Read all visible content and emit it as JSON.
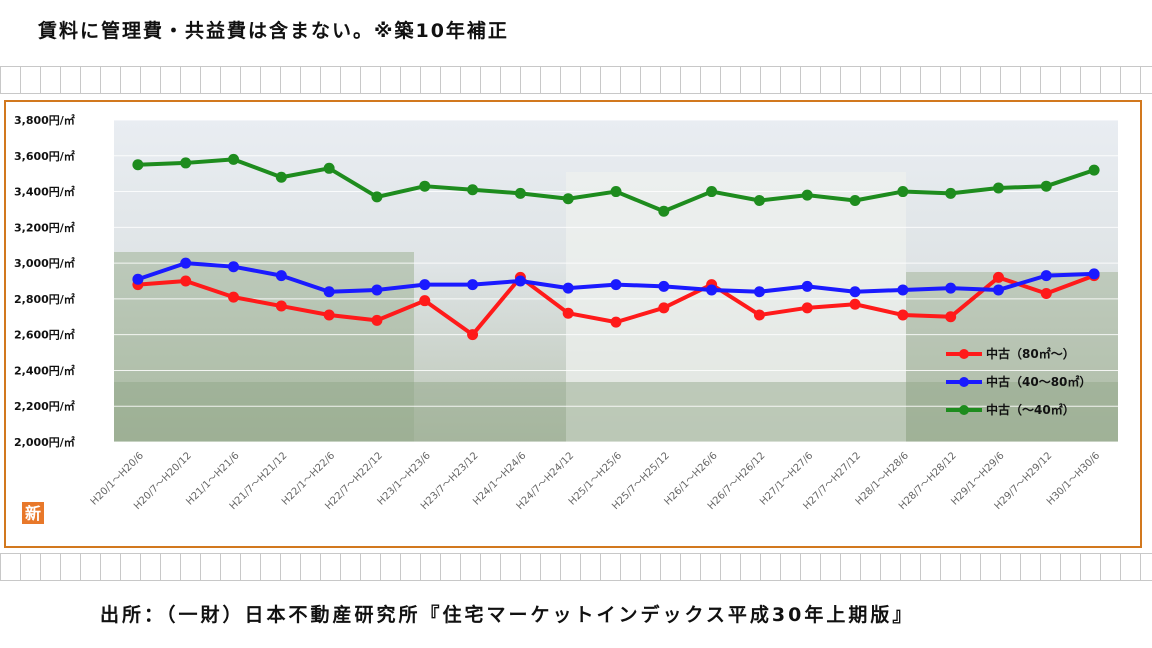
{
  "header": {
    "note": "賃料に管理費・共益費は含まない。※築10年補正"
  },
  "footer": {
    "source": "出所：（一財）日本不動産研究所『住宅マーケットインデックス平成30年上期版』"
  },
  "badge": {
    "text": "新"
  },
  "colors": {
    "frame": "#d2781e",
    "red": "#ff1a1a",
    "blue": "#1a1aff",
    "green": "#1e8c1e"
  },
  "chart_data": {
    "type": "line",
    "ylim": [
      2000,
      3800
    ],
    "yticks": [
      2000,
      2200,
      2400,
      2600,
      2800,
      3000,
      3200,
      3400,
      3600,
      3800
    ],
    "ytick_labels": [
      "2,000円/㎡",
      "2,200円/㎡",
      "2,400円/㎡",
      "2,600円/㎡",
      "2,800円/㎡",
      "3,000円/㎡",
      "3,200円/㎡",
      "3,400円/㎡",
      "3,600円/㎡",
      "3,800円/㎡"
    ],
    "categories": [
      "H20/1～H20/6",
      "H20/7～H20/12",
      "H21/1～H21/6",
      "H21/7～H21/12",
      "H22/1～H22/6",
      "H22/7～H22/12",
      "H23/1～H23/6",
      "H23/7～H23/12",
      "H24/1～H24/6",
      "H24/7～H24/12",
      "H25/1～H25/6",
      "H25/7～H25/12",
      "H26/1～H26/6",
      "H26/7～H26/12",
      "H27/1～H27/6",
      "H27/7～H27/12",
      "H28/1～H28/6",
      "H28/7～H28/12",
      "H29/1～H29/6",
      "H29/7～H29/12",
      "H30/1～H30/6"
    ],
    "legend_position": "bottom-right",
    "series": [
      {
        "name": "中古（80㎡～）",
        "color": "#ff1a1a",
        "values": [
          2880,
          2900,
          2810,
          2760,
          2710,
          2680,
          2790,
          2600,
          2920,
          2720,
          2670,
          2750,
          2880,
          2710,
          2750,
          2770,
          2710,
          2700,
          2920,
          2830,
          2930
        ]
      },
      {
        "name": "中古（40～80㎡）",
        "color": "#1a1aff",
        "values": [
          2910,
          3000,
          2980,
          2930,
          2840,
          2850,
          2880,
          2880,
          2900,
          2860,
          2880,
          2870,
          2850,
          2840,
          2870,
          2840,
          2850,
          2860,
          2850,
          2930,
          2940
        ]
      },
      {
        "name": "中古（～40㎡）",
        "color": "#1e8c1e",
        "values": [
          3550,
          3560,
          3580,
          3480,
          3530,
          3370,
          3430,
          3410,
          3390,
          3360,
          3400,
          3290,
          3400,
          3350,
          3380,
          3350,
          3400,
          3390,
          3420,
          3430,
          3520
        ]
      }
    ]
  }
}
